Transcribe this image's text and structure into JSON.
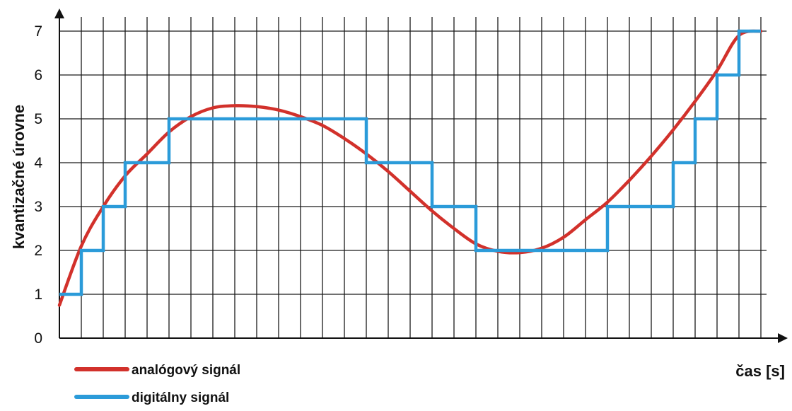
{
  "chart_data": {
    "type": "line",
    "xlabel": "čas [s]",
    "ylabel": "kvantizačné úrovne",
    "ylim": [
      0,
      7
    ],
    "yticks": [
      "0",
      "1",
      "2",
      "3",
      "4",
      "5",
      "6",
      "7"
    ],
    "grid": true,
    "legend_position": "bottom-left",
    "colors": {
      "analog": "#d2312b",
      "digital": "#2b9bd9",
      "grid": "#1a1a1a"
    },
    "series": [
      {
        "name": "analógový signál",
        "kind": "smooth",
        "x": [
          0,
          1,
          2,
          3,
          4,
          5,
          6,
          7,
          8,
          9,
          10,
          11,
          12,
          13,
          14,
          15,
          16,
          17,
          18,
          19,
          20,
          21,
          22,
          23,
          24,
          25,
          26,
          27,
          28,
          29,
          30,
          31,
          32
        ],
        "y": [
          0.75,
          2.1,
          3.0,
          3.7,
          4.2,
          4.7,
          5.05,
          5.25,
          5.3,
          5.28,
          5.2,
          5.05,
          4.85,
          4.55,
          4.2,
          3.8,
          3.35,
          2.9,
          2.5,
          2.15,
          1.98,
          1.95,
          2.05,
          2.3,
          2.7,
          3.1,
          3.6,
          4.15,
          4.75,
          5.4,
          6.1,
          6.9,
          7.0
        ]
      },
      {
        "name": "digitálny signál",
        "kind": "step",
        "x": [
          0,
          1,
          2,
          3,
          4,
          5,
          6,
          7,
          8,
          9,
          10,
          11,
          12,
          13,
          14,
          15,
          16,
          17,
          18,
          19,
          20,
          21,
          22,
          23,
          24,
          25,
          26,
          27,
          28,
          29,
          30,
          31,
          32
        ],
        "y": [
          1,
          2,
          3,
          4,
          4,
          5,
          5,
          5,
          5,
          5,
          5,
          5,
          5,
          5,
          4,
          4,
          4,
          3,
          3,
          2,
          2,
          2,
          2,
          2,
          2,
          3,
          3,
          3,
          4,
          5,
          6,
          7,
          7
        ]
      }
    ]
  }
}
